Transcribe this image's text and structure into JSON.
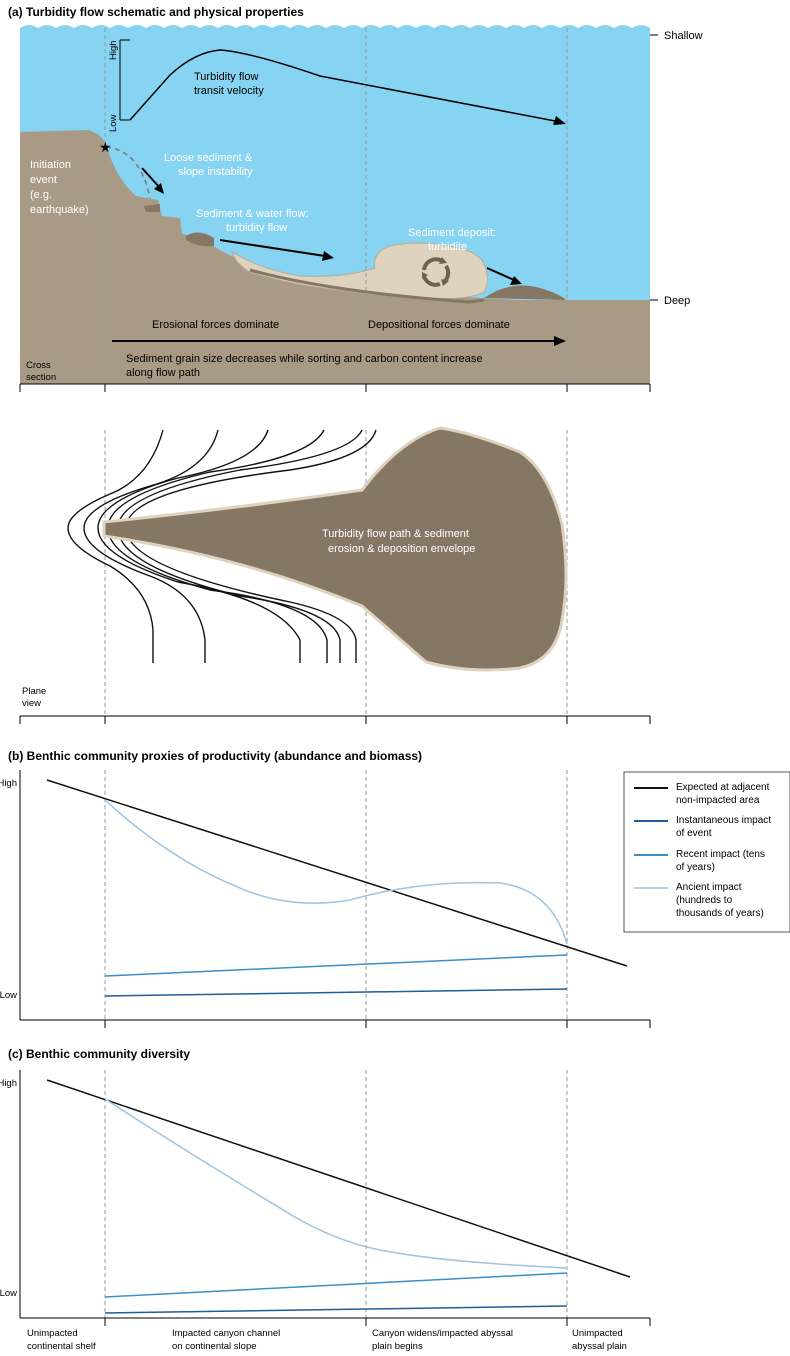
{
  "panel_a": {
    "title": "(a) Turbidity flow schematic and physical properties",
    "depth_shallow": "Shallow",
    "depth_deep": "Deep",
    "velocity_high": "High",
    "velocity_low": "Low",
    "velocity_label_1": "Turbidity flow",
    "velocity_label_2": "transit velocity",
    "initiation_1": "Initiation",
    "initiation_2": "event",
    "initiation_3": "(e.g.",
    "initiation_4": "earthquake)",
    "loose_1": "Loose sediment &",
    "loose_2": "slope instability",
    "flow_1": "Sediment & water flow:",
    "flow_2": "turbidity flow",
    "deposit_1": "Sediment deposit:",
    "deposit_2": "turbidite",
    "erosional": "Erosional forces dominate",
    "depositional": "Depositional forces dominate",
    "grain_1": "Sediment grain size decreases while sorting and carbon content increase",
    "grain_2": "along flow path",
    "cross_1": "Cross",
    "cross_2": "section",
    "plane_1": "Plane",
    "plane_2": "view",
    "envelope_1": "Turbidity flow path & sediment",
    "envelope_2": "erosion & deposition envelope"
  },
  "panel_b": {
    "title": "(b) Benthic community proxies of productivity (abundance and biomass)",
    "y_high": "High",
    "y_low": "Low"
  },
  "panel_c": {
    "title": "(c) Benthic community diversity",
    "y_high": "High",
    "y_low": "Low"
  },
  "legend": {
    "items": [
      {
        "line1": "Expected at adjacent",
        "line2": "non-impacted area",
        "line3": "",
        "line4": "",
        "color": "#111111"
      },
      {
        "line1": "Instantaneous impact",
        "line2": "of event",
        "line3": "",
        "line4": "",
        "color": "#1f5e96"
      },
      {
        "line1": "Recent impact (tens",
        "line2": "of years)",
        "line3": "",
        "line4": "",
        "color": "#3b8fc6"
      },
      {
        "line1": "Ancient impact",
        "line2": "(hundreds to",
        "line3": "thousands of years)",
        "line4": "",
        "color": "#9fc3e0"
      }
    ]
  },
  "x_zones": {
    "zone1_1": "Unimpacted",
    "zone1_2": "continental shelf",
    "zone2_1": "Impacted canyon channel",
    "zone2_2": "on continental slope",
    "zone3_1": "Canyon widens/impacted abyssal",
    "zone3_2": "plain begins",
    "zone4_1": "Unimpacted",
    "zone4_2": "abyssal plain"
  },
  "colors": {
    "water": "#87d3f2",
    "seafloor": "#a89a85",
    "sediment": "#ddd3bf",
    "dark_sediment": "#857764",
    "expected": "#111111",
    "instantaneous": "#1f5e96",
    "recent": "#3b8fc6",
    "ancient": "#9fc3e0",
    "guide": "#9a9a9a"
  }
}
